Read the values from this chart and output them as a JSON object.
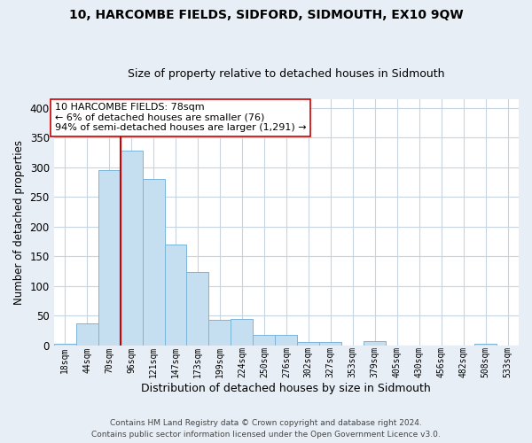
{
  "title": "10, HARCOMBE FIELDS, SIDFORD, SIDMOUTH, EX10 9QW",
  "subtitle": "Size of property relative to detached houses in Sidmouth",
  "xlabel": "Distribution of detached houses by size in Sidmouth",
  "ylabel": "Number of detached properties",
  "bar_labels": [
    "18sqm",
    "44sqm",
    "70sqm",
    "96sqm",
    "121sqm",
    "147sqm",
    "173sqm",
    "199sqm",
    "224sqm",
    "250sqm",
    "276sqm",
    "302sqm",
    "327sqm",
    "353sqm",
    "379sqm",
    "405sqm",
    "430sqm",
    "456sqm",
    "482sqm",
    "508sqm",
    "533sqm"
  ],
  "bar_values": [
    3,
    37,
    295,
    328,
    280,
    170,
    124,
    43,
    45,
    17,
    17,
    5,
    6,
    0,
    7,
    0,
    0,
    0,
    0,
    2,
    0
  ],
  "bar_color": "#c5dff0",
  "bar_edge_color": "#7ab5d8",
  "highlight_line_color": "#cc0000",
  "annotation_text": "10 HARCOMBE FIELDS: 78sqm\n← 6% of detached houses are smaller (76)\n94% of semi-detached houses are larger (1,291) →",
  "annotation_box_color": "#ffffff",
  "annotation_box_edge": "#cc0000",
  "ylim": [
    0,
    415
  ],
  "yticks": [
    0,
    50,
    100,
    150,
    200,
    250,
    300,
    350,
    400
  ],
  "footer_line1": "Contains HM Land Registry data © Crown copyright and database right 2024.",
  "footer_line2": "Contains public sector information licensed under the Open Government Licence v3.0.",
  "bg_color": "#e8eef5",
  "plot_bg_color": "#ffffff",
  "grid_color": "#c8d4df"
}
